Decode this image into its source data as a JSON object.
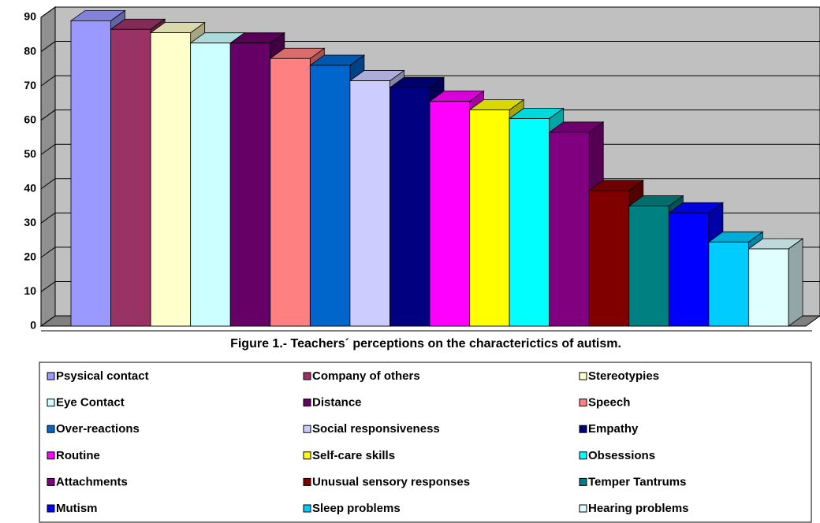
{
  "chart_data": {
    "type": "bar",
    "title": "Figure 1.- Teachers´ perceptions on the characterictics of autism.",
    "ylim": [
      0,
      90
    ],
    "yticks": [
      0,
      10,
      20,
      30,
      40,
      50,
      60,
      70,
      80,
      90
    ],
    "grid": true,
    "legend": "bottom",
    "series": [
      {
        "name": "Psysical contact",
        "color": "#9999ff",
        "values": [
          89
        ]
      },
      {
        "name": "Company of others",
        "color": "#993366",
        "values": [
          86.5
        ]
      },
      {
        "name": "Stereotypies",
        "color": "#ffffcc",
        "values": [
          85.5
        ]
      },
      {
        "name": "Eye Contact",
        "color": "#ccffff",
        "values": [
          82.5
        ]
      },
      {
        "name": "Distance",
        "color": "#660066",
        "values": [
          82.5
        ]
      },
      {
        "name": "Speech",
        "color": "#ff8080",
        "values": [
          78
        ]
      },
      {
        "name": "Over-reactions",
        "color": "#0066cc",
        "values": [
          76
        ]
      },
      {
        "name": "Social responsiveness",
        "color": "#ccccff",
        "values": [
          71.5
        ]
      },
      {
        "name": "Empathy",
        "color": "#000080",
        "values": [
          69.5
        ]
      },
      {
        "name": "Routine",
        "color": "#ff00ff",
        "values": [
          65.5
        ]
      },
      {
        "name": "Self-care skills",
        "color": "#ffff00",
        "values": [
          63
        ]
      },
      {
        "name": "Obsessions",
        "color": "#00ffff",
        "values": [
          60.5
        ]
      },
      {
        "name": "Attachments",
        "color": "#800080",
        "values": [
          56.5
        ]
      },
      {
        "name": "Unusual sensory responses",
        "color": "#800000",
        "values": [
          39.5
        ]
      },
      {
        "name": "Temper Tantrums",
        "color": "#008080",
        "values": [
          35
        ]
      },
      {
        "name": "Mutism",
        "color": "#0000ff",
        "values": [
          33
        ]
      },
      {
        "name": "Sleep problems",
        "color": "#00ccff",
        "values": [
          24.5
        ]
      },
      {
        "name": "Hearing problems",
        "color": "#e0ffff",
        "values": [
          22.5
        ]
      }
    ]
  }
}
